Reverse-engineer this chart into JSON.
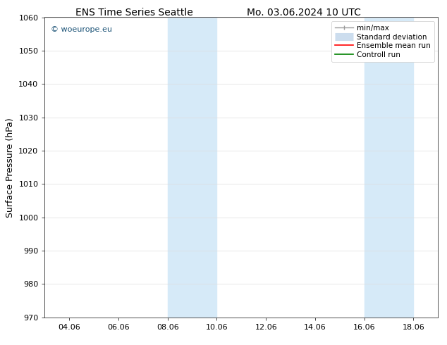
{
  "title_left": "ENS Time Series Seattle",
  "title_right": "Mo. 03.06.2024 10 UTC",
  "ylabel": "Surface Pressure (hPa)",
  "xlim": [
    3.06,
    19.06
  ],
  "ylim": [
    970,
    1060
  ],
  "yticks": [
    970,
    980,
    990,
    1000,
    1010,
    1020,
    1030,
    1040,
    1050,
    1060
  ],
  "xtick_labels": [
    "04.06",
    "06.06",
    "08.06",
    "10.06",
    "12.06",
    "14.06",
    "16.06",
    "18.06"
  ],
  "xtick_positions": [
    4.06,
    6.06,
    8.06,
    10.06,
    12.06,
    14.06,
    16.06,
    18.06
  ],
  "shaded_bands": [
    {
      "x_start": 8.06,
      "x_end": 10.06
    },
    {
      "x_start": 16.06,
      "x_end": 18.06
    }
  ],
  "shaded_color": "#d6eaf8",
  "watermark_text": "© woeurope.eu",
  "watermark_color": "#1a5276",
  "legend_entries": [
    {
      "label": "min/max",
      "color": "#999999",
      "lw": 1.0
    },
    {
      "label": "Standard deviation",
      "color": "#ccddee",
      "lw": 8
    },
    {
      "label": "Ensemble mean run",
      "color": "red",
      "lw": 1.2
    },
    {
      "label": "Controll run",
      "color": "green",
      "lw": 1.2
    }
  ],
  "bg_color": "white",
  "grid_color": "#dddddd",
  "title_fontsize": 10,
  "axis_label_fontsize": 9,
  "tick_fontsize": 8,
  "legend_fontsize": 7.5,
  "watermark_fontsize": 8
}
